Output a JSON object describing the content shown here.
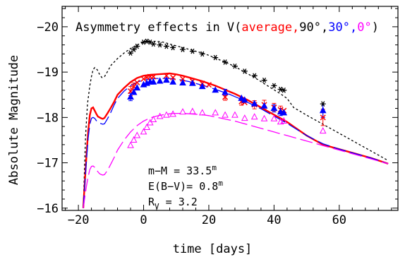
{
  "chart_data": {
    "type": "line",
    "title_parts": [
      {
        "text": "Asymmetry effects in V(",
        "color": "#000000"
      },
      {
        "text": "average,",
        "color": "#ff0000"
      },
      {
        "text": "90°,",
        "color": "#000000"
      },
      {
        "text": "30°,",
        "color": "#0000ff"
      },
      {
        "text": "0°",
        "color": "#ff00ff"
      },
      {
        "text": ")",
        "color": "#000000"
      }
    ],
    "xlabel": "time [days]",
    "ylabel": "Absolute Magnitude",
    "xlim": [
      -25,
      78
    ],
    "ylim": [
      -15.95,
      -20.45
    ],
    "y_inverted": true,
    "x_ticks": [
      -20,
      0,
      20,
      40,
      60
    ],
    "y_ticks": [
      -16,
      -17,
      -18,
      -19,
      -20
    ],
    "grid": false,
    "annotations": {
      "line1": {
        "base": "m−M = 33.5",
        "sup": "m"
      },
      "line2": {
        "base": "E(B−V)= 0.8",
        "sup": "m"
      },
      "line3": {
        "base": "R",
        "sub": "V",
        "rest": "  = 3.2"
      }
    },
    "series": [
      {
        "style": "dotted",
        "color": "#000000",
        "x": [
          -18.5,
          -17.8,
          -17.2,
          -16.5,
          -16,
          -15.5,
          -15,
          -14.2,
          -13.5,
          -12.8,
          -12,
          -11,
          -10,
          -8,
          -6,
          -4,
          -2,
          0,
          2,
          4,
          6,
          8,
          10,
          12,
          14,
          16,
          18,
          20,
          22,
          24,
          26,
          28,
          30,
          32,
          34,
          36,
          38,
          40,
          42,
          44,
          46,
          50,
          55,
          60,
          65,
          70,
          75
        ],
        "y": [
          -16.0,
          -17.6,
          -18.3,
          -18.7,
          -18.9,
          -19.05,
          -19.1,
          -19.05,
          -18.95,
          -18.88,
          -18.9,
          -19.02,
          -19.15,
          -19.3,
          -19.42,
          -19.52,
          -19.6,
          -19.66,
          -19.68,
          -19.68,
          -19.66,
          -19.62,
          -19.58,
          -19.54,
          -19.5,
          -19.46,
          -19.42,
          -19.37,
          -19.31,
          -19.25,
          -19.19,
          -19.12,
          -19.04,
          -18.96,
          -18.88,
          -18.79,
          -18.7,
          -18.61,
          -18.52,
          -18.42,
          -18.22,
          -18.05,
          -17.85,
          -17.65,
          -17.45,
          -17.25,
          -17.05
        ]
      },
      {
        "style": "solid",
        "color": "#ff0000",
        "x": [
          -18.5,
          -18,
          -17.5,
          -17,
          -16.5,
          -16,
          -15.5,
          -15,
          -14.5,
          -14,
          -13.5,
          -13,
          -12.5,
          -12,
          -11,
          -10,
          -9,
          -8,
          -6,
          -4,
          -2,
          0,
          2,
          4,
          6,
          8,
          10,
          12,
          14,
          16,
          18,
          20,
          22,
          24,
          26,
          28,
          30,
          32,
          34,
          36,
          38,
          40,
          42,
          44,
          46,
          50,
          55,
          60,
          65,
          70,
          75
        ],
        "y": [
          -16.0,
          -16.6,
          -17.2,
          -17.7,
          -18.05,
          -18.2,
          -18.22,
          -18.15,
          -18.08,
          -18.02,
          -18.0,
          -17.98,
          -17.97,
          -17.99,
          -18.1,
          -18.22,
          -18.35,
          -18.5,
          -18.65,
          -18.78,
          -18.87,
          -18.92,
          -18.94,
          -18.95,
          -18.96,
          -18.97,
          -18.95,
          -18.92,
          -18.88,
          -18.84,
          -18.8,
          -18.75,
          -18.7,
          -18.64,
          -18.58,
          -18.52,
          -18.45,
          -18.38,
          -18.3,
          -18.22,
          -18.14,
          -18.06,
          -17.98,
          -17.9,
          -17.8,
          -17.6,
          -17.4,
          -17.3,
          -17.2,
          -17.1,
          -16.98
        ]
      },
      {
        "style": "longdash",
        "color": "#0000ff",
        "x": [
          -18.5,
          -18,
          -17.5,
          -17,
          -16.5,
          -16,
          -15.5,
          -15,
          -14.5,
          -14,
          -13.5,
          -13,
          -12.5,
          -12,
          -11,
          -10,
          -9,
          -8,
          -6,
          -4,
          -2,
          0,
          2,
          4,
          6,
          8,
          10,
          12,
          14,
          16,
          18,
          20,
          22,
          24,
          26,
          28,
          30,
          32,
          34,
          36,
          38,
          40,
          42,
          44,
          46,
          50,
          55,
          60,
          65,
          70,
          75
        ],
        "y": [
          -16.0,
          -16.55,
          -17.1,
          -17.55,
          -17.85,
          -17.98,
          -18.0,
          -17.98,
          -17.93,
          -17.9,
          -17.88,
          -17.86,
          -17.85,
          -17.86,
          -17.98,
          -18.12,
          -18.28,
          -18.42,
          -18.58,
          -18.7,
          -18.78,
          -18.82,
          -18.85,
          -18.86,
          -18.86,
          -18.86,
          -18.85,
          -18.82,
          -18.79,
          -18.75,
          -18.71,
          -18.67,
          -18.62,
          -18.57,
          -18.52,
          -18.46,
          -18.4,
          -18.33,
          -18.26,
          -18.19,
          -18.11,
          -18.03,
          -17.95,
          -17.87,
          -17.78,
          -17.6,
          -17.42,
          -17.3,
          -17.2,
          -17.1,
          -16.98
        ]
      },
      {
        "style": "longdash",
        "color": "#ff00ff",
        "x": [
          -18.5,
          -18,
          -17.5,
          -17,
          -16.5,
          -16,
          -15.5,
          -15,
          -14.5,
          -14,
          -13.5,
          -13,
          -12.5,
          -12,
          -11,
          -10,
          -9,
          -8,
          -6,
          -4,
          -2,
          0,
          2,
          4,
          6,
          8,
          10,
          12,
          14,
          16,
          18,
          20,
          22,
          24,
          26,
          28,
          30,
          32,
          34,
          36,
          38,
          40,
          42,
          44,
          46,
          50,
          55,
          60,
          65,
          70,
          75
        ],
        "y": [
          -16.0,
          -16.25,
          -16.5,
          -16.7,
          -16.85,
          -16.92,
          -16.93,
          -16.9,
          -16.85,
          -16.8,
          -16.76,
          -16.74,
          -16.73,
          -16.74,
          -16.84,
          -16.98,
          -17.12,
          -17.28,
          -17.5,
          -17.68,
          -17.82,
          -17.92,
          -17.99,
          -18.03,
          -18.06,
          -18.08,
          -18.09,
          -18.09,
          -18.08,
          -18.07,
          -18.06,
          -18.04,
          -18.01,
          -17.98,
          -17.95,
          -17.92,
          -17.88,
          -17.84,
          -17.8,
          -17.76,
          -17.72,
          -17.68,
          -17.64,
          -17.6,
          -17.56,
          -17.48,
          -17.38,
          -17.28,
          -17.18,
          -17.08,
          -16.98
        ]
      }
    ],
    "markers": [
      {
        "symbol": "star",
        "color": "#000000",
        "x": [
          -4,
          -3,
          -2,
          0,
          1,
          2,
          3,
          5,
          7,
          9,
          12,
          15,
          18,
          22,
          25,
          28,
          31,
          34,
          37,
          40,
          42,
          43,
          55
        ],
        "y": [
          -19.42,
          -19.5,
          -19.57,
          -19.66,
          -19.68,
          -19.66,
          -19.62,
          -19.6,
          -19.57,
          -19.54,
          -19.5,
          -19.46,
          -19.4,
          -19.32,
          -19.22,
          -19.13,
          -19.02,
          -18.92,
          -18.82,
          -18.7,
          -18.62,
          -18.6,
          -18.3
        ]
      },
      {
        "symbol": "cross",
        "color": "#ff0000",
        "x": [
          -4,
          -3,
          -2,
          0,
          1,
          2,
          3,
          7,
          9,
          12,
          15,
          18,
          20,
          25,
          30,
          31,
          34,
          37,
          40,
          42,
          43,
          55
        ],
        "y": [
          -18.58,
          -18.68,
          -18.77,
          -18.85,
          -18.88,
          -18.9,
          -18.9,
          -18.92,
          -18.88,
          -18.85,
          -18.8,
          -18.75,
          -18.72,
          -18.45,
          -18.35,
          -18.33,
          -18.28,
          -18.28,
          -18.22,
          -18.17,
          -18.15,
          -18.0
        ]
      },
      {
        "symbol": "triangle",
        "color": "#0000ff",
        "x": [
          -4,
          -3,
          -2,
          0,
          1,
          2,
          3,
          5,
          7,
          9,
          12,
          15,
          18,
          22,
          25,
          30,
          31,
          34,
          37,
          40,
          42,
          43,
          55
        ],
        "y": [
          -18.45,
          -18.55,
          -18.65,
          -18.72,
          -18.75,
          -18.78,
          -18.78,
          -18.8,
          -18.82,
          -18.78,
          -18.76,
          -18.75,
          -18.68,
          -18.6,
          -18.55,
          -18.42,
          -18.38,
          -18.3,
          -18.25,
          -18.2,
          -18.12,
          -18.1,
          -18.15
        ]
      },
      {
        "symbol": "triangle",
        "color": "#ff00ff",
        "x": [
          -4,
          -3,
          -2,
          0,
          1,
          2,
          3,
          5,
          7,
          9,
          12,
          15,
          18,
          22,
          25,
          28,
          31,
          34,
          37,
          40,
          42,
          43,
          55
        ],
        "y": [
          -17.38,
          -17.5,
          -17.6,
          -17.68,
          -17.78,
          -17.88,
          -17.95,
          -18.02,
          -18.05,
          -18.07,
          -18.12,
          -18.13,
          -18.1,
          -18.1,
          -18.05,
          -18.05,
          -17.98,
          -18.01,
          -17.97,
          -17.97,
          -17.9,
          -17.92,
          -17.7
        ]
      }
    ],
    "errorbars": [
      {
        "color": "#ff0000",
        "x": [
          -4,
          -3,
          25,
          30,
          34,
          37,
          40,
          42,
          55
        ],
        "y": [
          -18.58,
          -18.68,
          -18.45,
          -18.35,
          -18.28,
          -18.28,
          -18.22,
          -18.17,
          -18.0
        ],
        "err": [
          0.1,
          0.08,
          0.07,
          0.08,
          0.09,
          0.1,
          0.09,
          0.08,
          0.18
        ]
      },
      {
        "color": "#0000ff",
        "x": [
          -4,
          25,
          40,
          42,
          55
        ],
        "y": [
          -18.45,
          -18.55,
          -18.2,
          -18.12,
          -18.15
        ],
        "err": [
          0.08,
          0.07,
          0.08,
          0.08,
          0.15
        ]
      }
    ]
  }
}
